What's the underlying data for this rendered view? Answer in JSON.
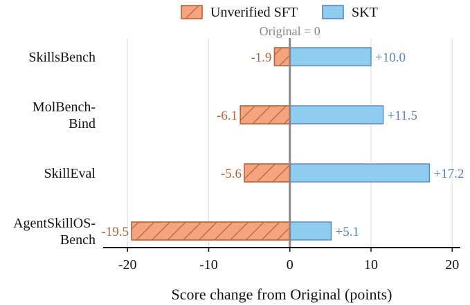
{
  "chart_data": {
    "type": "bar",
    "orientation": "horizontal",
    "categories": [
      [
        "SkillsBench"
      ],
      [
        "MolBench-",
        "Bind"
      ],
      [
        "SkillEval"
      ],
      [
        "AgentSkillOS-",
        "Bench"
      ]
    ],
    "series": [
      {
        "name": "Unverified SFT",
        "values": [
          -1.9,
          -6.1,
          -5.6,
          -19.5
        ],
        "labels": [
          "-1.9",
          "-6.1",
          "-5.6",
          "-19.5"
        ],
        "color": "#f4a57e",
        "edge_color": "#b5603a",
        "hatch": "diagonal"
      },
      {
        "name": "SKT",
        "values": [
          10.0,
          11.5,
          17.2,
          5.1
        ],
        "labels": [
          "+10.0",
          "+11.5",
          "+17.2",
          "+5.1"
        ],
        "color": "#8ecdf0",
        "edge_color": "#5a84b8"
      }
    ],
    "xlabel": "Score change from Original (points)",
    "xlim": [
      -23,
      21
    ],
    "xticks": [
      -20,
      -10,
      0,
      10,
      20
    ],
    "xtick_labels": [
      "-20",
      "-10",
      "0",
      "10",
      "20"
    ],
    "reference_line": {
      "x": 0,
      "label": "Original = 0",
      "color": "#888888"
    },
    "grid": "vertical",
    "legend": "top-center",
    "label_colors": {
      "negative": "#b5603a",
      "positive": "#5a84b8"
    }
  }
}
